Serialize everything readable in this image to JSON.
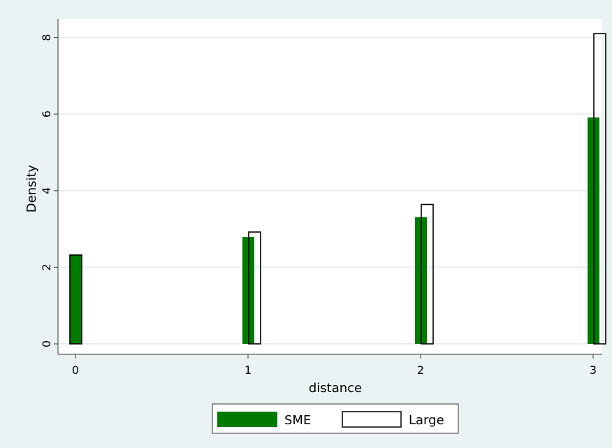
{
  "chart_data": {
    "type": "bar",
    "xlabel": "distance",
    "ylabel": "Density",
    "x": [
      0,
      1,
      2,
      3
    ],
    "xticks": [
      "0",
      "1",
      "2",
      "3"
    ],
    "yticks": [
      "0",
      "2",
      "4",
      "6",
      "8"
    ],
    "ylim": [
      0,
      8.4
    ],
    "xlim": [
      0,
      3
    ],
    "grid": true,
    "legend_position": "bottom",
    "series": [
      {
        "name": "SME",
        "color": "#007a00",
        "values": [
          2.32,
          2.79,
          3.31,
          5.91
        ]
      },
      {
        "name": "Large",
        "color": "#ffffff",
        "values": [
          2.32,
          2.92,
          3.64,
          8.1
        ]
      }
    ]
  }
}
